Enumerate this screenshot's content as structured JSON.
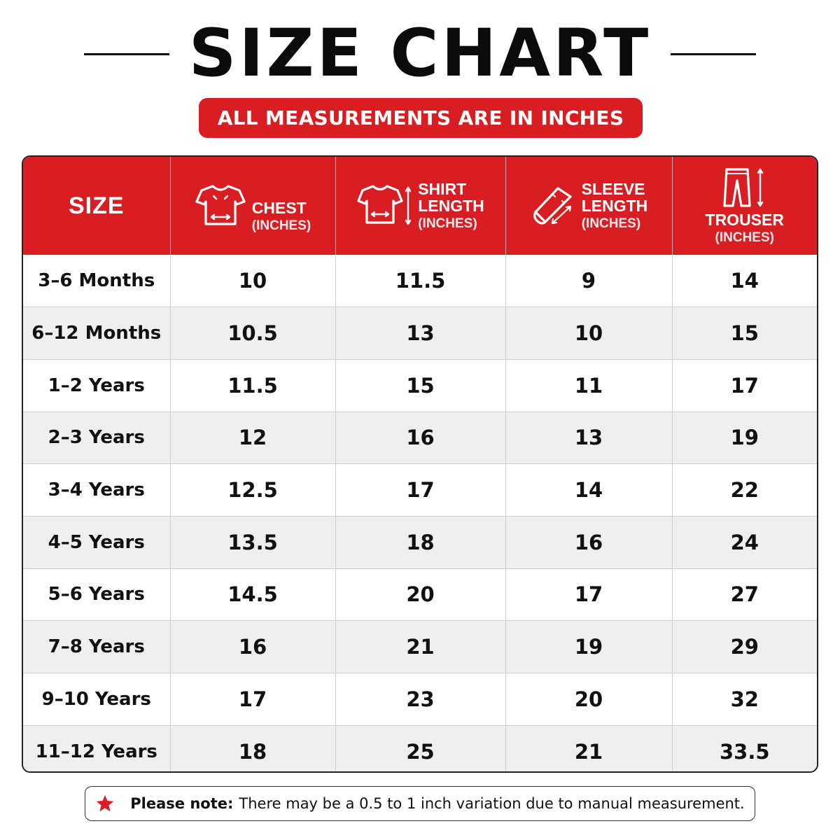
{
  "title": "SIZE CHART",
  "subtitle": "ALL MEASUREMENTS ARE IN INCHES",
  "colors": {
    "accent_red": "#d81e22",
    "row_alt": "#efefef",
    "text": "#111111"
  },
  "table": {
    "headers": [
      {
        "label": "SIZE",
        "unit": "",
        "icon": ""
      },
      {
        "label": "CHEST",
        "unit": "(INCHES)",
        "icon": "tshirt-chest-icon"
      },
      {
        "label1": "SHIRT",
        "label2": "LENGTH",
        "unit": "(INCHES)",
        "icon": "tshirt-length-icon"
      },
      {
        "label1": "SLEEVE",
        "label2": "LENGTH",
        "unit": "(INCHES)",
        "icon": "sleeve-icon"
      },
      {
        "label": "TROUSER",
        "unit": "(INCHES)",
        "icon": "trouser-icon"
      }
    ],
    "rows": [
      [
        "3–6 Months",
        "10",
        "11.5",
        "9",
        "14"
      ],
      [
        "6–12 Months",
        "10.5",
        "13",
        "10",
        "15"
      ],
      [
        "1–2 Years",
        "11.5",
        "15",
        "11",
        "17"
      ],
      [
        "2–3 Years",
        "12",
        "16",
        "13",
        "19"
      ],
      [
        "3–4 Years",
        "12.5",
        "17",
        "14",
        "22"
      ],
      [
        "4–5 Years",
        "13.5",
        "18",
        "16",
        "24"
      ],
      [
        "5–6 Years",
        "14.5",
        "20",
        "17",
        "27"
      ],
      [
        "7–8 Years",
        "16",
        "21",
        "19",
        "29"
      ],
      [
        "9–10 Years",
        "17",
        "23",
        "20",
        "32"
      ],
      [
        "11–12 Years",
        "18",
        "25",
        "21",
        "33.5"
      ]
    ]
  },
  "note": {
    "icon": "star-icon",
    "bold": "Please note:",
    "text": "There may be a 0.5 to 1 inch variation due to manual measurement."
  }
}
